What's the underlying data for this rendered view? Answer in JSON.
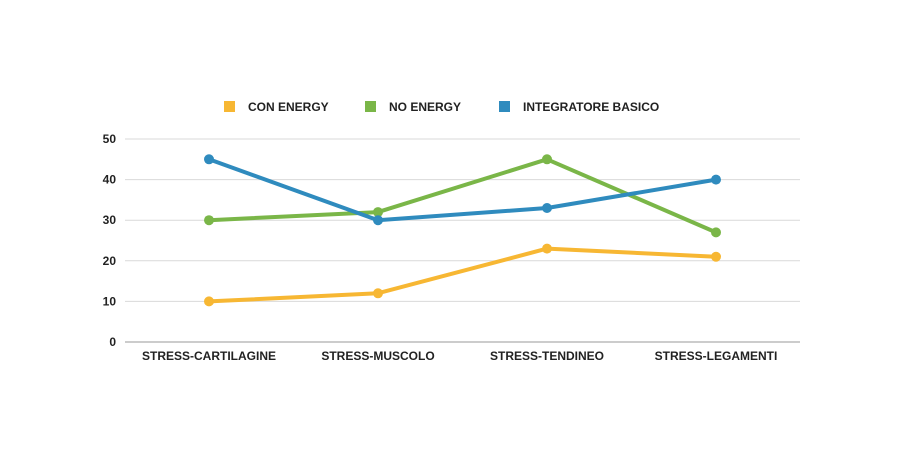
{
  "chart_data": {
    "type": "line",
    "categories": [
      "STRESS-CARTILAGINE",
      "STRESS-MUSCOLO",
      "STRESS-TENDINEO",
      "STRESS-LEGAMENTI"
    ],
    "series": [
      {
        "name": "CON ENERGY",
        "color": "#F7B733",
        "values": [
          10,
          12,
          23,
          21
        ]
      },
      {
        "name": "NO ENERGY",
        "color": "#7AB648",
        "values": [
          30,
          32,
          45,
          27
        ]
      },
      {
        "name": "INTEGRATORE BASICO",
        "color": "#2F8BBE",
        "values": [
          45,
          30,
          33,
          40
        ]
      }
    ],
    "yticks": [
      0,
      10,
      20,
      30,
      40,
      50
    ],
    "ylim": [
      0,
      50
    ],
    "grid": true,
    "legend_position": "top-center"
  }
}
